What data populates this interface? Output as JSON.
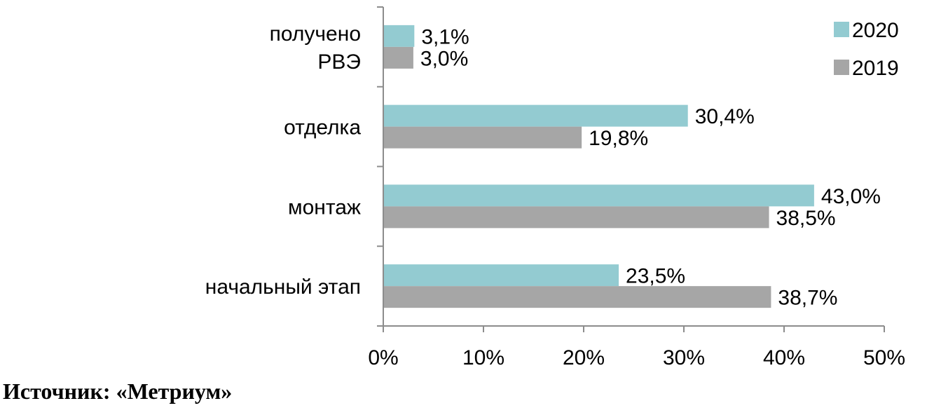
{
  "chart_data": {
    "type": "bar",
    "orientation": "horizontal",
    "categories": [
      [
        "получено",
        "РВЭ"
      ],
      [
        "отделка"
      ],
      [
        "монтаж"
      ],
      [
        "начальный этап"
      ]
    ],
    "series": [
      {
        "name": "2020",
        "color": "#93cbd1",
        "values": [
          3.1,
          30.4,
          43.0,
          23.5
        ],
        "labels": [
          "3,1%",
          "30,4%",
          "43,0%",
          "23,5%"
        ]
      },
      {
        "name": "2019",
        "color": "#a6a6a6",
        "values": [
          3.0,
          19.8,
          38.5,
          38.7
        ],
        "labels": [
          "3,0%",
          "19,8%",
          "38,5%",
          "38,7%"
        ]
      }
    ],
    "xlim": [
      0,
      50
    ],
    "xticks": [
      0,
      10,
      20,
      30,
      40,
      50
    ],
    "xtick_labels": [
      "0%",
      "10%",
      "20%",
      "30%",
      "40%",
      "50%"
    ],
    "grid": false,
    "legend_position": "top-right"
  },
  "source": "Источник: «Метриум»"
}
